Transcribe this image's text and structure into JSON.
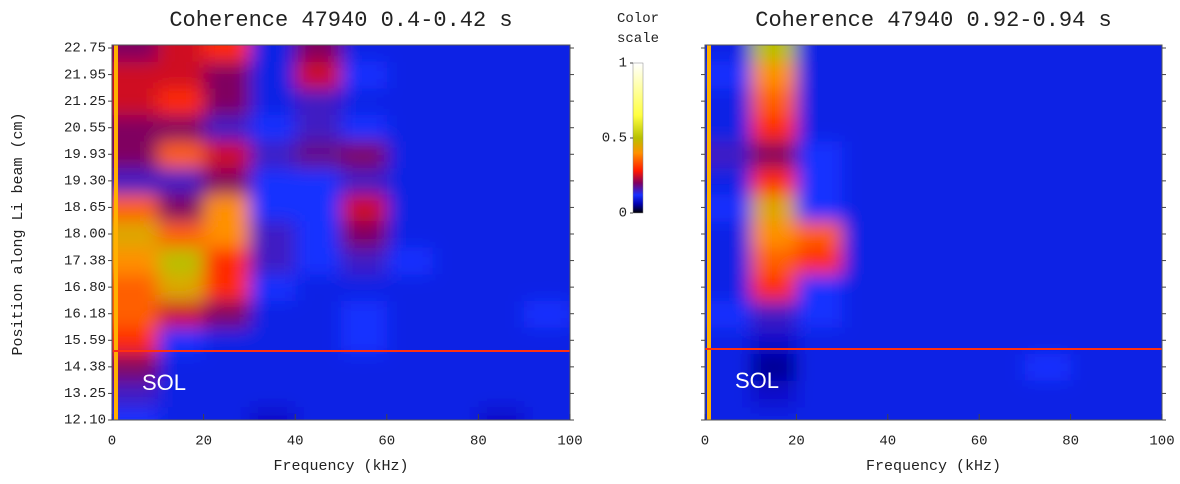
{
  "chart_data": [
    {
      "type": "heatmap",
      "title": "Coherence 47940 0.4-0.42 s",
      "x_label": "Frequency (kHz)",
      "y_label": "Position along Li beam (cm)",
      "xlim": [
        0,
        100
      ],
      "xticks": [
        0,
        20,
        40,
        60,
        80,
        100
      ],
      "x_bin": 10,
      "categories": [
        "12.10",
        "13.25",
        "14.38",
        "15.59",
        "16.18",
        "16.80",
        "17.38",
        "18.00",
        "18.65",
        "19.30",
        "19.93",
        "20.55",
        "21.25",
        "21.95",
        "22.75"
      ],
      "annotation": "SOL",
      "values": [
        [
          0.12,
          0.1,
          0.1,
          0.08,
          0.1,
          0.1,
          0.1,
          0.1,
          0.08,
          0.1
        ],
        [
          0.15,
          0.1,
          0.1,
          0.1,
          0.1,
          0.1,
          0.1,
          0.1,
          0.1,
          0.1
        ],
        [
          0.2,
          0.1,
          0.1,
          0.1,
          0.1,
          0.1,
          0.1,
          0.1,
          0.1,
          0.1
        ],
        [
          0.3,
          0.12,
          0.1,
          0.1,
          0.1,
          0.12,
          0.1,
          0.1,
          0.1,
          0.1
        ],
        [
          0.35,
          0.25,
          0.2,
          0.1,
          0.1,
          0.12,
          0.1,
          0.1,
          0.1,
          0.12
        ],
        [
          0.35,
          0.45,
          0.3,
          0.12,
          0.1,
          0.1,
          0.1,
          0.1,
          0.1,
          0.1
        ],
        [
          0.4,
          0.5,
          0.3,
          0.15,
          0.12,
          0.15,
          0.12,
          0.1,
          0.1,
          0.1
        ],
        [
          0.45,
          0.35,
          0.4,
          0.15,
          0.12,
          0.2,
          0.1,
          0.1,
          0.1,
          0.1
        ],
        [
          0.35,
          0.2,
          0.4,
          0.12,
          0.12,
          0.25,
          0.1,
          0.1,
          0.1,
          0.1
        ],
        [
          0.15,
          0.15,
          0.2,
          0.12,
          0.12,
          0.15,
          0.1,
          0.1,
          0.1,
          0.1
        ],
        [
          0.2,
          0.35,
          0.25,
          0.15,
          0.18,
          0.2,
          0.1,
          0.1,
          0.1,
          0.1
        ],
        [
          0.2,
          0.2,
          0.15,
          0.12,
          0.15,
          0.12,
          0.1,
          0.1,
          0.1,
          0.1
        ],
        [
          0.25,
          0.3,
          0.2,
          0.1,
          0.15,
          0.1,
          0.1,
          0.1,
          0.1,
          0.1
        ],
        [
          0.25,
          0.25,
          0.2,
          0.1,
          0.25,
          0.12,
          0.1,
          0.1,
          0.1,
          0.1
        ],
        [
          0.2,
          0.25,
          0.3,
          0.1,
          0.2,
          0.1,
          0.1,
          0.1,
          0.1,
          0.1
        ]
      ]
    },
    {
      "type": "heatmap",
      "title": "Coherence 47940 0.92-0.94 s",
      "x_label": "Frequency (kHz)",
      "xlim": [
        0,
        100
      ],
      "xticks": [
        0,
        20,
        40,
        60,
        80,
        100
      ],
      "x_bin": 10,
      "annotation": "SOL",
      "values": [
        [
          0.1,
          0.1,
          0.1,
          0.1,
          0.1,
          0.1,
          0.1,
          0.1,
          0.1,
          0.1
        ],
        [
          0.1,
          0.08,
          0.1,
          0.1,
          0.1,
          0.1,
          0.1,
          0.1,
          0.1,
          0.1
        ],
        [
          0.1,
          0.05,
          0.1,
          0.1,
          0.1,
          0.1,
          0.1,
          0.12,
          0.1,
          0.1
        ],
        [
          0.1,
          0.08,
          0.1,
          0.1,
          0.1,
          0.1,
          0.1,
          0.1,
          0.1,
          0.1
        ],
        [
          0.12,
          0.15,
          0.12,
          0.1,
          0.1,
          0.1,
          0.1,
          0.1,
          0.1,
          0.1
        ],
        [
          0.1,
          0.3,
          0.12,
          0.1,
          0.1,
          0.1,
          0.1,
          0.1,
          0.1,
          0.1
        ],
        [
          0.1,
          0.35,
          0.3,
          0.1,
          0.1,
          0.1,
          0.1,
          0.1,
          0.1,
          0.1
        ],
        [
          0.1,
          0.4,
          0.35,
          0.1,
          0.1,
          0.1,
          0.1,
          0.1,
          0.1,
          0.1
        ],
        [
          0.12,
          0.45,
          0.12,
          0.1,
          0.1,
          0.1,
          0.1,
          0.1,
          0.1,
          0.1
        ],
        [
          0.1,
          0.3,
          0.12,
          0.1,
          0.1,
          0.1,
          0.1,
          0.1,
          0.1,
          0.1
        ],
        [
          0.15,
          0.2,
          0.12,
          0.1,
          0.1,
          0.1,
          0.1,
          0.1,
          0.1,
          0.1
        ],
        [
          0.1,
          0.3,
          0.1,
          0.1,
          0.1,
          0.1,
          0.1,
          0.1,
          0.1,
          0.1
        ],
        [
          0.1,
          0.35,
          0.1,
          0.1,
          0.1,
          0.1,
          0.1,
          0.1,
          0.1,
          0.1
        ],
        [
          0.12,
          0.4,
          0.1,
          0.1,
          0.1,
          0.1,
          0.1,
          0.1,
          0.1,
          0.1
        ],
        [
          0.1,
          0.5,
          0.1,
          0.1,
          0.1,
          0.1,
          0.1,
          0.1,
          0.1,
          0.1
        ]
      ]
    }
  ],
  "colorbar": {
    "title": [
      "Color",
      "scale"
    ],
    "lim": [
      0,
      1
    ],
    "ticks": [
      0,
      0.5,
      1
    ],
    "stops": [
      [
        0,
        "#000000"
      ],
      [
        0.06,
        "#0000b0"
      ],
      [
        0.12,
        "#1830ff"
      ],
      [
        0.2,
        "#800060"
      ],
      [
        0.28,
        "#ff1800"
      ],
      [
        0.4,
        "#ff9000"
      ],
      [
        0.5,
        "#b8c000"
      ],
      [
        0.65,
        "#ffff40"
      ],
      [
        1,
        "#ffffff"
      ]
    ]
  }
}
